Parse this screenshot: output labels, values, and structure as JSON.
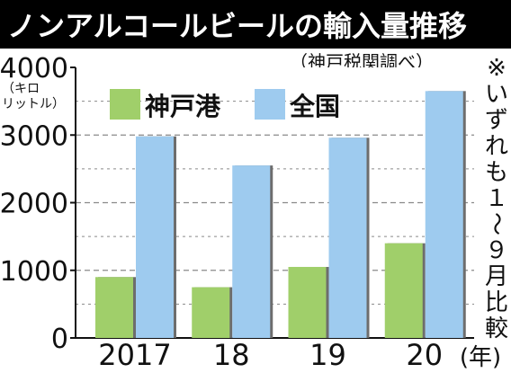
{
  "title": "ノンアルコールビールの輸入量推移",
  "source": "（神戸税関調べ）",
  "note": "※いずれも1〜9月比較",
  "colors": {
    "title_bg": "#000000",
    "title_fg": "#ffffff",
    "plot_bg": "#ffffff",
    "kobe": "#a0cf6a",
    "national": "#9ecbef",
    "gridline": "#8a8a8a"
  },
  "chart_data": {
    "type": "bar",
    "title": "ノンアルコールビールの輸入量推移",
    "ylabel_unit": "（キロリットル）",
    "xunit": "(年)",
    "ylim": [
      0,
      4000
    ],
    "yticks": [
      "0",
      "1000",
      "2000",
      "3000",
      "4000"
    ],
    "categories": [
      "2017",
      "18",
      "19",
      "20"
    ],
    "series": [
      {
        "name": "神戸港",
        "values": [
          900,
          750,
          1050,
          1400
        ]
      },
      {
        "name": "全国",
        "values": [
          2980,
          2550,
          2960,
          3650
        ]
      }
    ],
    "legend": "top-left",
    "grid": "horizontal dashed"
  }
}
